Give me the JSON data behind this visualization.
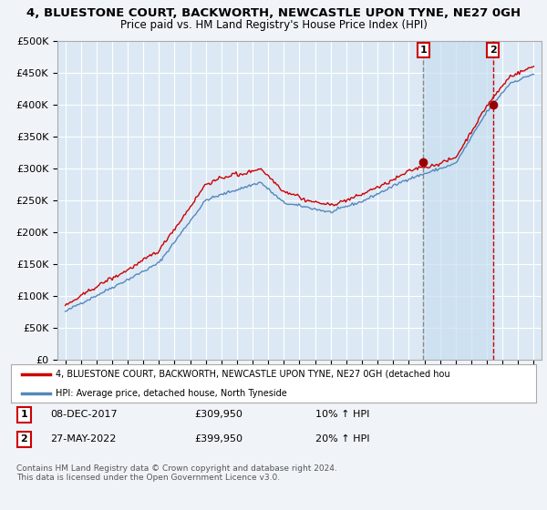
{
  "title_line1": "4, BLUESTONE COURT, BACKWORTH, NEWCASTLE UPON TYNE, NE27 0GH",
  "title_line2": "Price paid vs. HM Land Registry's House Price Index (HPI)",
  "ylabel_ticks": [
    "£0",
    "£50K",
    "£100K",
    "£150K",
    "£200K",
    "£250K",
    "£300K",
    "£350K",
    "£400K",
    "£450K",
    "£500K"
  ],
  "ytick_values": [
    0,
    50000,
    100000,
    150000,
    200000,
    250000,
    300000,
    350000,
    400000,
    450000,
    500000
  ],
  "ylim": [
    0,
    500000
  ],
  "xlim_start": 1994.5,
  "xlim_end": 2025.5,
  "red_line_color": "#cc0000",
  "blue_line_color": "#5588bb",
  "plot_bg_color": "#dce9f5",
  "background_color": "#f0f4f8",
  "grid_color": "#ffffff",
  "marker1_x": 2017.92,
  "marker1_y": 309950,
  "marker2_x": 2022.38,
  "marker2_y": 399950,
  "marker1_label": "1",
  "marker2_label": "2",
  "marker_color": "#990000",
  "dashed_line1_color": "#888888",
  "dashed_line2_color": "#cc0000",
  "shade_color": "#c8dff0",
  "legend_red_label": "4, BLUESTONE COURT, BACKWORTH, NEWCASTLE UPON TYNE, NE27 0GH (detached hou",
  "legend_blue_label": "HPI: Average price, detached house, North Tyneside",
  "footer": "Contains HM Land Registry data © Crown copyright and database right 2024.\nThis data is licensed under the Open Government Licence v3.0.",
  "xtick_years": [
    1995,
    1996,
    1997,
    1998,
    1999,
    2000,
    2001,
    2002,
    2003,
    2004,
    2005,
    2006,
    2007,
    2008,
    2009,
    2010,
    2011,
    2012,
    2013,
    2014,
    2015,
    2016,
    2017,
    2018,
    2019,
    2020,
    2021,
    2022,
    2023,
    2024,
    2025
  ]
}
